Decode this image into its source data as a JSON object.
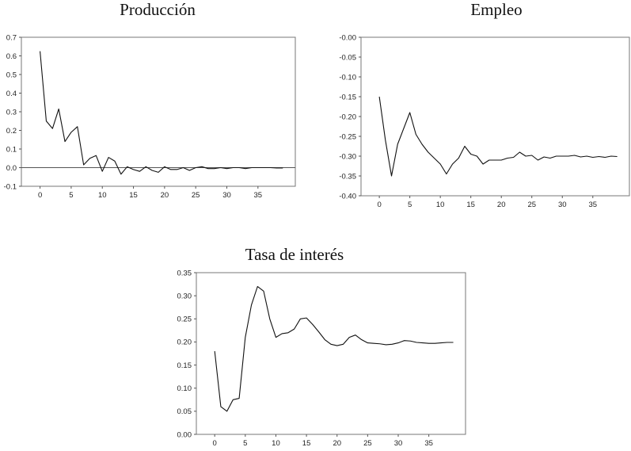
{
  "chart_data": [
    {
      "type": "line",
      "title": "Producción",
      "xlabel": "",
      "ylabel": "",
      "xlim": [
        -3,
        41
      ],
      "ylim": [
        -0.1,
        0.7
      ],
      "xticks": [
        0,
        5,
        10,
        15,
        20,
        25,
        30,
        35
      ],
      "yticks": [
        -0.1,
        0.0,
        0.1,
        0.2,
        0.3,
        0.4,
        0.5,
        0.6,
        0.7
      ],
      "ytick_labels": [
        "-0.1",
        "0.0",
        "0.1",
        "0.2",
        "0.3",
        "0.4",
        "0.5",
        "0.6",
        "0.7"
      ],
      "zero_line": true,
      "grid": false,
      "series": [
        {
          "x": [
            0,
            1,
            2,
            3,
            4,
            5,
            6,
            7,
            8,
            9,
            10,
            11,
            12,
            13,
            14,
            15,
            16,
            17,
            18,
            19,
            20,
            21,
            22,
            23,
            24,
            25,
            26,
            27,
            28,
            29,
            30,
            31,
            32,
            33,
            34,
            35,
            36,
            37,
            38,
            39
          ],
          "values": [
            0.625,
            0.25,
            0.21,
            0.315,
            0.14,
            0.19,
            0.22,
            0.015,
            0.05,
            0.065,
            -0.02,
            0.055,
            0.035,
            -0.035,
            0.005,
            -0.01,
            -0.02,
            0.005,
            -0.015,
            -0.025,
            0.005,
            -0.01,
            -0.01,
            0.0,
            -0.015,
            0.0,
            0.005,
            -0.005,
            -0.005,
            0.0,
            -0.005,
            0.0,
            0.0,
            -0.005,
            0.0,
            0.0,
            0.0,
            0.0,
            -0.002,
            -0.002
          ]
        }
      ]
    },
    {
      "type": "line",
      "title": "Empleo",
      "xlabel": "",
      "ylabel": "",
      "xlim": [
        -3,
        41
      ],
      "ylim": [
        -0.4,
        0.0
      ],
      "xticks": [
        0,
        5,
        10,
        15,
        20,
        25,
        30,
        35
      ],
      "yticks": [
        -0.4,
        -0.35,
        -0.3,
        -0.25,
        -0.2,
        -0.15,
        -0.1,
        -0.05,
        0.0
      ],
      "ytick_labels": [
        "-0.40",
        "-0.35",
        "-0.30",
        "-0.25",
        "-0.20",
        "-0.15",
        "-0.10",
        "-0.05",
        "-0.00"
      ],
      "zero_line": false,
      "grid": false,
      "series": [
        {
          "x": [
            0,
            1,
            2,
            3,
            4,
            5,
            6,
            7,
            8,
            9,
            10,
            11,
            12,
            13,
            14,
            15,
            16,
            17,
            18,
            19,
            20,
            21,
            22,
            23,
            24,
            25,
            26,
            27,
            28,
            29,
            30,
            31,
            32,
            33,
            34,
            35,
            36,
            37,
            38,
            39
          ],
          "values": [
            -0.15,
            -0.26,
            -0.35,
            -0.27,
            -0.23,
            -0.19,
            -0.245,
            -0.27,
            -0.29,
            -0.305,
            -0.32,
            -0.345,
            -0.32,
            -0.305,
            -0.275,
            -0.295,
            -0.3,
            -0.32,
            -0.31,
            -0.31,
            -0.31,
            -0.305,
            -0.303,
            -0.29,
            -0.3,
            -0.298,
            -0.31,
            -0.302,
            -0.305,
            -0.3,
            -0.3,
            -0.3,
            -0.298,
            -0.302,
            -0.3,
            -0.303,
            -0.301,
            -0.303,
            -0.3,
            -0.301
          ]
        }
      ]
    },
    {
      "type": "line",
      "title": "Tasa de interés",
      "xlabel": "",
      "ylabel": "",
      "xlim": [
        -3,
        41
      ],
      "ylim": [
        0.0,
        0.35
      ],
      "xticks": [
        0,
        5,
        10,
        15,
        20,
        25,
        30,
        35
      ],
      "yticks": [
        0.0,
        0.05,
        0.1,
        0.15,
        0.2,
        0.25,
        0.3,
        0.35
      ],
      "ytick_labels": [
        "0.00",
        "0.05",
        "0.10",
        "0.15",
        "0.20",
        "0.25",
        "0.30",
        "0.35"
      ],
      "zero_line": false,
      "grid": false,
      "series": [
        {
          "x": [
            0,
            1,
            2,
            3,
            4,
            5,
            6,
            7,
            8,
            9,
            10,
            11,
            12,
            13,
            14,
            15,
            16,
            17,
            18,
            19,
            20,
            21,
            22,
            23,
            24,
            25,
            26,
            27,
            28,
            29,
            30,
            31,
            32,
            33,
            34,
            35,
            36,
            37,
            38,
            39
          ],
          "values": [
            0.18,
            0.06,
            0.05,
            0.075,
            0.078,
            0.21,
            0.28,
            0.32,
            0.31,
            0.25,
            0.21,
            0.218,
            0.22,
            0.228,
            0.25,
            0.252,
            0.238,
            0.222,
            0.205,
            0.195,
            0.192,
            0.195,
            0.21,
            0.215,
            0.205,
            0.198,
            0.197,
            0.196,
            0.194,
            0.195,
            0.198,
            0.203,
            0.202,
            0.199,
            0.198,
            0.197,
            0.197,
            0.198,
            0.199,
            0.199
          ]
        }
      ]
    }
  ]
}
